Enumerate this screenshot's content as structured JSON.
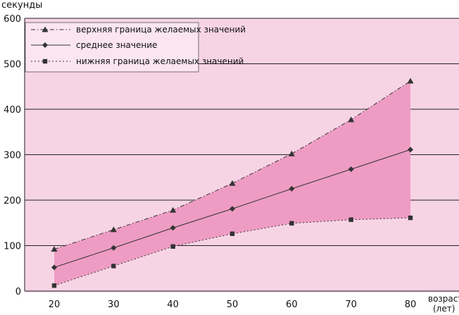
{
  "chart_data": {
    "type": "line",
    "ylabel": "секунды",
    "xlabel": "возраст",
    "xlabel_unit": "(лет)",
    "ylim": [
      0,
      600
    ],
    "yticks": [
      0,
      100,
      200,
      300,
      400,
      500,
      600
    ],
    "x": [
      20,
      30,
      40,
      50,
      60,
      70,
      80
    ],
    "grid": "horizontal",
    "legend_position": "top-left",
    "colors": {
      "plot_background": "#f7d4e4",
      "band_fill": "#ee9cc3",
      "series_line": "#333333",
      "grid": "#222222"
    },
    "series": [
      {
        "name": "верхняя граница желаемых значений",
        "marker": "triangle",
        "dash": "dashdot",
        "values": [
          92,
          135,
          178,
          237,
          302,
          377,
          462
        ]
      },
      {
        "name": "среднее значение",
        "marker": "diamond",
        "dash": "solid",
        "values": [
          52,
          95,
          139,
          181,
          225,
          268,
          311
        ]
      },
      {
        "name": "нижняя граница желаемых значений",
        "marker": "square",
        "dash": "dotted",
        "values": [
          12,
          55,
          98,
          126,
          149,
          157,
          161
        ]
      }
    ]
  }
}
